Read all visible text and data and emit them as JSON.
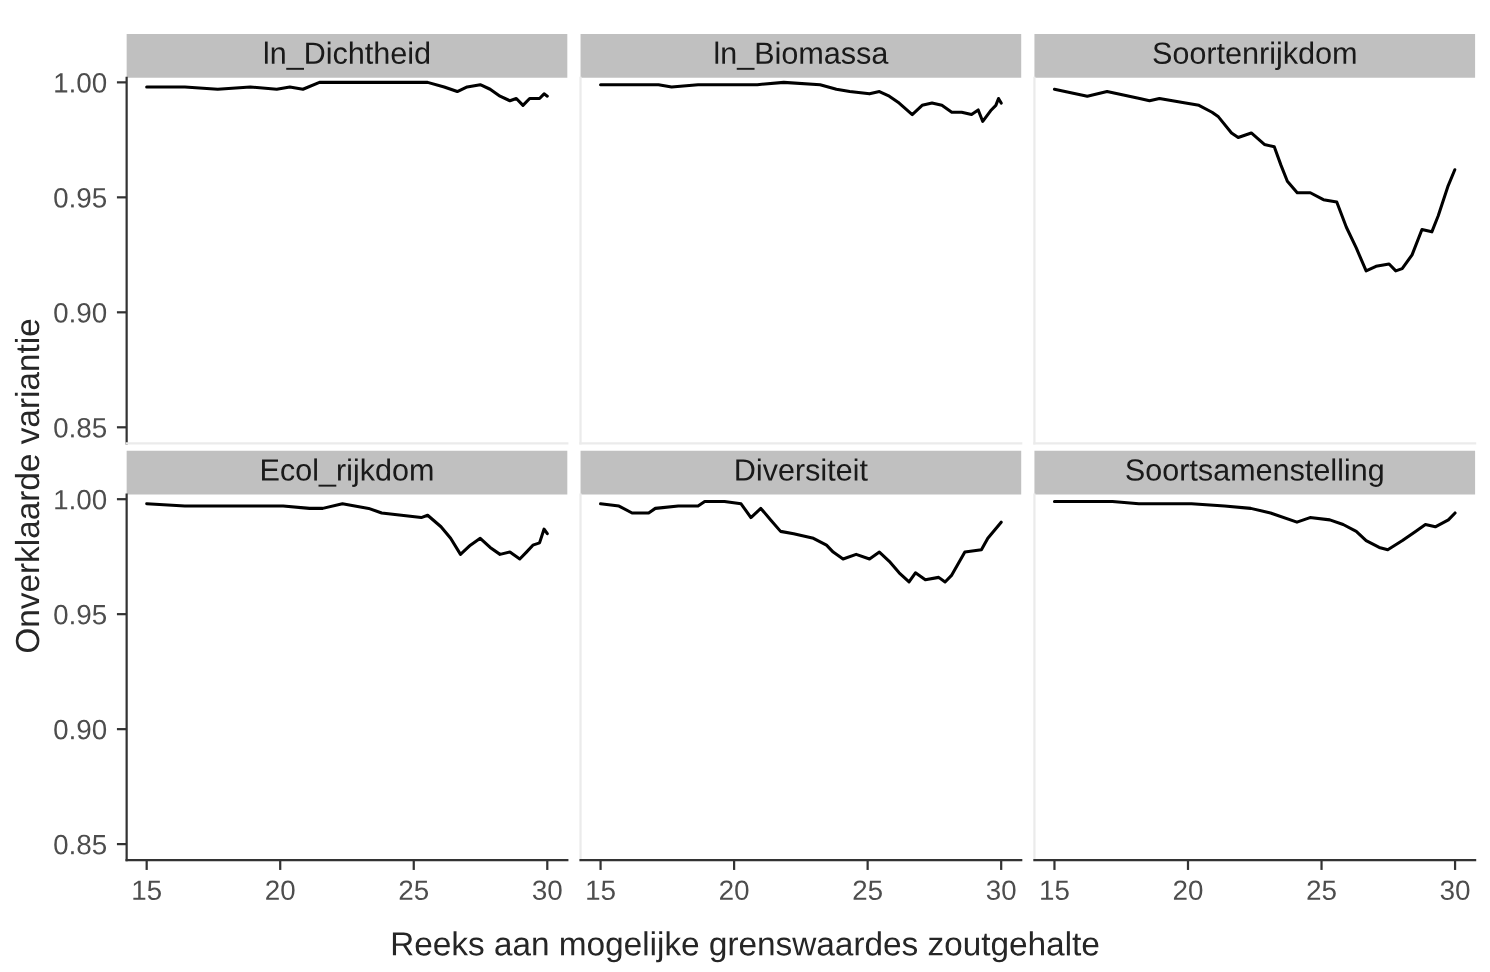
{
  "chart_data": [
    {
      "type": "line",
      "title": "ln_Dichtheid",
      "ylabel": "Onverklaarde variantie",
      "tick_labels": "y",
      "xlim": [
        14.25,
        30.75
      ],
      "ylim": [
        0.843,
        1.002
      ],
      "yticks": [
        {
          "value": 0.85,
          "label": "0.85"
        },
        {
          "value": 0.9,
          "label": "0.90"
        },
        {
          "value": 0.95,
          "label": "0.95"
        },
        {
          "value": 1.0,
          "label": "1.00"
        }
      ],
      "line_style": "solid",
      "series": [
        {
          "color": "#000000",
          "x": [
            15,
            16.43,
            17.66,
            18.88,
            19.87,
            20.36,
            20.85,
            21.47,
            22.57,
            25.52,
            26.14,
            26.63,
            27,
            27.49,
            27.86,
            28.23,
            28.6,
            28.84,
            29.09,
            29.34,
            29.71,
            29.88,
            30
          ],
          "values": [
            0.998,
            0.998,
            0.997,
            0.998,
            0.997,
            0.998,
            0.997,
            1.0,
            1.0,
            1.0,
            0.998,
            0.996,
            0.998,
            0.999,
            0.997,
            0.994,
            0.992,
            0.993,
            0.99,
            0.993,
            0.993,
            0.995,
            0.994
          ]
        }
      ]
    },
    {
      "type": "line",
      "title": "ln_Biomassa",
      "tick_labels": false,
      "xlim": [
        14.25,
        30.75
      ],
      "ylim": [
        0.843,
        1.002
      ],
      "line_style": "solid",
      "series": [
        {
          "color": "#000000",
          "x": [
            15,
            17.17,
            17.66,
            18.65,
            19.89,
            20.87,
            21.86,
            23.22,
            23.83,
            24.33,
            25.07,
            25.44,
            25.81,
            26.18,
            26.67,
            27.04,
            27.41,
            27.78,
            28.15,
            28.52,
            28.89,
            29.14,
            29.31,
            29.63,
            29.8,
            29.9,
            30
          ],
          "values": [
            0.999,
            0.999,
            0.998,
            0.999,
            0.999,
            0.999,
            1.0,
            0.999,
            0.997,
            0.996,
            0.995,
            0.996,
            0.994,
            0.991,
            0.986,
            0.99,
            0.991,
            0.99,
            0.987,
            0.987,
            0.986,
            0.988,
            0.983,
            0.988,
            0.99,
            0.993,
            0.991
          ]
        }
      ]
    },
    {
      "type": "line",
      "title": "Soortenrijkdom",
      "tick_labels": false,
      "xlim": [
        14.25,
        30.75
      ],
      "ylim": [
        0.843,
        1.002
      ],
      "line_style": "solid",
      "series": [
        {
          "color": "#000000",
          "x": [
            15,
            16.23,
            16.97,
            18.19,
            18.56,
            18.93,
            19.91,
            20.41,
            20.9,
            21.14,
            21.63,
            21.88,
            22.37,
            22.86,
            23.23,
            23.48,
            23.72,
            24.09,
            24.58,
            25.07,
            25.57,
            25.93,
            26.3,
            26.67,
            27.04,
            27.53,
            27.78,
            28.02,
            28.39,
            28.76,
            29.13,
            29.37,
            29.74,
            29.99
          ],
          "values": [
            0.997,
            0.994,
            0.996,
            0.993,
            0.992,
            0.993,
            0.991,
            0.99,
            0.987,
            0.985,
            0.978,
            0.976,
            0.978,
            0.973,
            0.972,
            0.964,
            0.957,
            0.952,
            0.952,
            0.949,
            0.948,
            0.937,
            0.928,
            0.918,
            0.92,
            0.921,
            0.918,
            0.919,
            0.925,
            0.936,
            0.935,
            0.942,
            0.955,
            0.962
          ]
        }
      ]
    },
    {
      "type": "line",
      "title": "Ecol_rijkdom",
      "xlim": [
        14.25,
        30.75
      ],
      "ylim": [
        0.843,
        1.002
      ],
      "xticks": [
        15,
        20,
        25,
        30
      ],
      "yticks": [
        {
          "value": 0.85,
          "label": "0.85"
        },
        {
          "value": 0.9,
          "label": "0.90"
        },
        {
          "value": 0.95,
          "label": "0.95"
        },
        {
          "value": 1.0,
          "label": "1.00"
        }
      ],
      "line_style": "solid",
      "series": [
        {
          "color": "#000000",
          "x": [
            15,
            16.43,
            17.66,
            18.88,
            20.11,
            21.1,
            21.59,
            22.33,
            23.31,
            23.8,
            24.54,
            25.28,
            25.52,
            26.02,
            26.38,
            26.75,
            27.12,
            27.49,
            27.86,
            28.23,
            28.6,
            28.97,
            29.22,
            29.46,
            29.71,
            29.88,
            30
          ],
          "values": [
            0.998,
            0.997,
            0.997,
            0.997,
            0.997,
            0.996,
            0.996,
            0.998,
            0.996,
            0.994,
            0.993,
            0.992,
            0.993,
            0.988,
            0.983,
            0.976,
            0.98,
            0.983,
            0.979,
            0.976,
            0.977,
            0.974,
            0.977,
            0.98,
            0.981,
            0.987,
            0.985
          ]
        }
      ]
    },
    {
      "type": "line",
      "title": "Diversiteit",
      "xlabel": "Reeks aan mogelijke grenswaardes zoutgehalte",
      "tick_labels": "x",
      "xlim": [
        14.25,
        30.75
      ],
      "ylim": [
        0.843,
        1.002
      ],
      "xticks": [
        15,
        20,
        25,
        30
      ],
      "line_style": "solid",
      "series": [
        {
          "color": "#000000",
          "x": [
            15,
            15.69,
            16.18,
            16.8,
            17.05,
            17.91,
            18.65,
            18.9,
            19.64,
            20.26,
            20.63,
            21,
            21.37,
            21.74,
            22.23,
            22.97,
            23.46,
            23.71,
            24.08,
            24.57,
            25.07,
            25.44,
            25.81,
            26.18,
            26.55,
            26.79,
            27.16,
            27.66,
            27.9,
            28.15,
            28.64,
            29.26,
            29.5,
            30
          ],
          "values": [
            0.998,
            0.997,
            0.994,
            0.994,
            0.996,
            0.997,
            0.997,
            0.999,
            0.999,
            0.998,
            0.992,
            0.996,
            0.991,
            0.986,
            0.985,
            0.983,
            0.98,
            0.977,
            0.974,
            0.976,
            0.974,
            0.977,
            0.973,
            0.968,
            0.964,
            0.968,
            0.965,
            0.966,
            0.964,
            0.967,
            0.977,
            0.978,
            0.983,
            0.99
          ]
        }
      ]
    },
    {
      "type": "line",
      "title": "Soortsamenstelling",
      "tick_labels": "x",
      "xlim": [
        14.25,
        30.75
      ],
      "ylim": [
        0.843,
        1.002
      ],
      "xticks": [
        15,
        20,
        25,
        30
      ],
      "line_style": "solid",
      "series": [
        {
          "color": "#000000",
          "x": [
            15,
            16.92,
            17.17,
            18.16,
            20.13,
            21.37,
            22.35,
            23.09,
            24.08,
            24.57,
            25.31,
            25.81,
            26.3,
            26.67,
            27.16,
            27.48,
            28.03,
            28.52,
            28.89,
            29.26,
            29.75,
            30
          ],
          "values": [
            0.999,
            0.999,
            0.999,
            0.998,
            0.998,
            0.997,
            0.996,
            0.994,
            0.99,
            0.992,
            0.991,
            0.989,
            0.986,
            0.982,
            0.979,
            0.978,
            0.982,
            0.986,
            0.989,
            0.988,
            0.991,
            0.994
          ]
        }
      ]
    }
  ]
}
